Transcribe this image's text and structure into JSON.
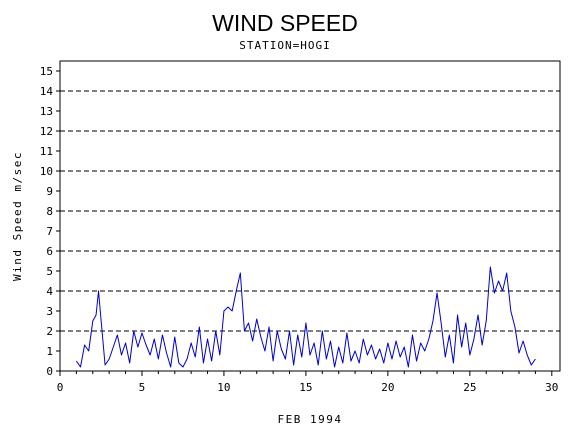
{
  "chart_data": {
    "type": "line",
    "title": "WIND SPEED",
    "subtitle": "STATION=HOGI",
    "xlabel": "FEB 1994",
    "ylabel": "Wind Speed m/sec",
    "xlim": [
      0,
      30.5
    ],
    "ylim": [
      0,
      15.5
    ],
    "xticks": [
      0,
      5,
      10,
      15,
      20,
      25,
      30
    ],
    "yticks": [
      0,
      1,
      2,
      3,
      4,
      5,
      6,
      7,
      8,
      9,
      10,
      11,
      12,
      13,
      14,
      15
    ],
    "reference_lines": [
      2,
      4,
      6,
      8,
      10,
      12,
      14
    ],
    "reference_line_style": "dashed",
    "series": [
      {
        "color": "#0000cc",
        "x": [
          1.0,
          1.25,
          1.5,
          1.75,
          2.0,
          2.2,
          2.35,
          2.5,
          2.75,
          3.0,
          3.25,
          3.5,
          3.75,
          4.0,
          4.25,
          4.5,
          4.75,
          5.0,
          5.25,
          5.5,
          5.75,
          6.0,
          6.25,
          6.5,
          6.75,
          7.0,
          7.25,
          7.5,
          7.75,
          8.0,
          8.25,
          8.5,
          8.75,
          9.0,
          9.25,
          9.5,
          9.75,
          10.0,
          10.25,
          10.5,
          10.75,
          11.0,
          11.25,
          11.5,
          11.75,
          12.0,
          12.25,
          12.5,
          12.75,
          13.0,
          13.25,
          13.5,
          13.75,
          14.0,
          14.25,
          14.5,
          14.75,
          15.0,
          15.25,
          15.5,
          15.75,
          16.0,
          16.25,
          16.5,
          16.75,
          17.0,
          17.25,
          17.5,
          17.75,
          18.0,
          18.25,
          18.5,
          18.75,
          19.0,
          19.25,
          19.5,
          19.75,
          20.0,
          20.25,
          20.5,
          20.75,
          21.0,
          21.25,
          21.5,
          21.75,
          22.0,
          22.25,
          22.5,
          22.75,
          23.0,
          23.25,
          23.5,
          23.75,
          24.0,
          24.25,
          24.5,
          24.75,
          25.0,
          25.25,
          25.5,
          25.75,
          26.0,
          26.25,
          26.5,
          26.75,
          27.0,
          27.25,
          27.5,
          27.75,
          28.0,
          28.25,
          28.5,
          28.75,
          29.0
        ],
        "values": [
          0.5,
          0.2,
          1.3,
          1.0,
          2.5,
          2.8,
          4.0,
          2.6,
          0.3,
          0.6,
          1.2,
          1.8,
          0.8,
          1.4,
          0.4,
          2.0,
          1.2,
          1.9,
          1.3,
          0.8,
          1.6,
          0.6,
          1.8,
          0.9,
          0.2,
          1.7,
          0.4,
          0.2,
          0.6,
          1.4,
          0.7,
          2.2,
          0.4,
          1.6,
          0.5,
          2.0,
          0.8,
          3.0,
          3.2,
          3.0,
          4.0,
          4.9,
          2.0,
          2.4,
          1.5,
          2.6,
          1.7,
          1.0,
          2.2,
          0.5,
          2.0,
          1.1,
          0.6,
          2.0,
          0.3,
          1.8,
          0.7,
          2.4,
          0.8,
          1.4,
          0.3,
          2.0,
          0.6,
          1.5,
          0.2,
          1.2,
          0.4,
          1.9,
          0.5,
          1.0,
          0.4,
          1.6,
          0.8,
          1.3,
          0.6,
          1.1,
          0.4,
          1.4,
          0.6,
          1.5,
          0.7,
          1.2,
          0.2,
          1.8,
          0.5,
          1.4,
          1.0,
          1.6,
          2.5,
          3.9,
          2.4,
          0.7,
          1.8,
          0.4,
          2.8,
          1.2,
          2.4,
          0.8,
          1.6,
          2.8,
          1.3,
          2.5,
          5.2,
          3.9,
          4.5,
          4.0,
          4.9,
          3.0,
          2.2,
          0.9,
          1.5,
          0.8,
          0.3,
          0.6
        ]
      }
    ]
  }
}
